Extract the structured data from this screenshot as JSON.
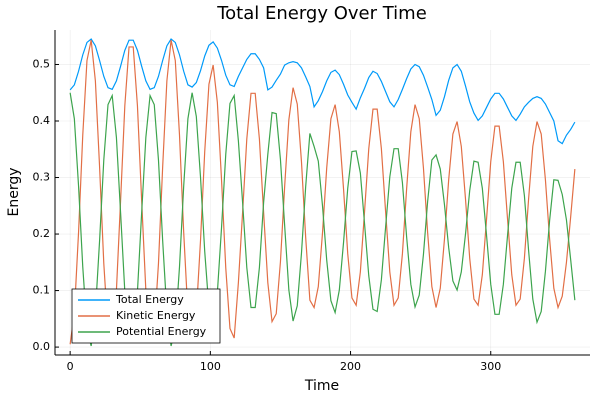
{
  "chart_data": {
    "type": "line",
    "title": "Total Energy Over Time",
    "x_label": "Time",
    "y_label": "Energy",
    "x": [
      0,
      3,
      6,
      9,
      12,
      15,
      18,
      21,
      24,
      27,
      30,
      33,
      36,
      39,
      42,
      45,
      48,
      51,
      54,
      57,
      60,
      63,
      66,
      69,
      72,
      75,
      78,
      81,
      84,
      87,
      90,
      93,
      96,
      99,
      102,
      105,
      108,
      111,
      114,
      117,
      120,
      123,
      126,
      129,
      132,
      135,
      138,
      141,
      144,
      147,
      150,
      153,
      156,
      159,
      162,
      165,
      168,
      171,
      174,
      177,
      180,
      183,
      186,
      189,
      192,
      195,
      198,
      201,
      204,
      207,
      210,
      213,
      216,
      219,
      222,
      225,
      228,
      231,
      234,
      237,
      240,
      243,
      246,
      249,
      252,
      255,
      258,
      261,
      264,
      267,
      270,
      273,
      276,
      279,
      282,
      285,
      288,
      291,
      294,
      297,
      300,
      303,
      306,
      309,
      312,
      315,
      318,
      321,
      324,
      327,
      330,
      333,
      336,
      339,
      342,
      345,
      348,
      351,
      354,
      357,
      360
    ],
    "series": [
      {
        "name": "Total Energy",
        "color": "#009af9",
        "values": [
          0.455,
          0.464,
          0.488,
          0.517,
          0.539,
          0.545,
          0.533,
          0.507,
          0.479,
          0.459,
          0.456,
          0.471,
          0.497,
          0.525,
          0.543,
          0.543,
          0.525,
          0.497,
          0.471,
          0.456,
          0.459,
          0.479,
          0.507,
          0.533,
          0.545,
          0.539,
          0.517,
          0.488,
          0.464,
          0.46,
          0.468,
          0.489,
          0.515,
          0.534,
          0.54,
          0.529,
          0.507,
          0.481,
          0.464,
          0.461,
          0.479,
          0.494,
          0.509,
          0.519,
          0.519,
          0.509,
          0.494,
          0.455,
          0.46,
          0.472,
          0.483,
          0.499,
          0.503,
          0.505,
          0.503,
          0.494,
          0.478,
          0.461,
          0.425,
          0.436,
          0.452,
          0.471,
          0.486,
          0.49,
          0.482,
          0.465,
          0.446,
          0.433,
          0.421,
          0.441,
          0.458,
          0.477,
          0.488,
          0.484,
          0.47,
          0.452,
          0.434,
          0.425,
          0.438,
          0.456,
          0.475,
          0.492,
          0.5,
          0.496,
          0.481,
          0.46,
          0.438,
          0.41,
          0.419,
          0.443,
          0.472,
          0.494,
          0.5,
          0.488,
          0.462,
          0.434,
          0.414,
          0.401,
          0.409,
          0.424,
          0.439,
          0.449,
          0.449,
          0.439,
          0.424,
          0.409,
          0.401,
          0.412,
          0.425,
          0.433,
          0.44,
          0.443,
          0.44,
          0.43,
          0.415,
          0.4,
          0.365,
          0.36,
          0.375,
          0.385,
          0.398
        ]
      },
      {
        "name": "Kinetic Energy",
        "color": "#e26f46",
        "values": [
          0.005,
          0.06,
          0.203,
          0.375,
          0.507,
          0.543,
          0.471,
          0.319,
          0.148,
          0.03,
          0.011,
          0.1,
          0.26,
          0.427,
          0.531,
          0.531,
          0.427,
          0.26,
          0.1,
          0.011,
          0.03,
          0.148,
          0.319,
          0.471,
          0.543,
          0.507,
          0.375,
          0.203,
          0.06,
          0.01,
          0.06,
          0.189,
          0.346,
          0.465,
          0.499,
          0.433,
          0.295,
          0.14,
          0.033,
          0.016,
          0.114,
          0.238,
          0.368,
          0.449,
          0.449,
          0.368,
          0.238,
          0.114,
          0.045,
          0.059,
          0.151,
          0.284,
          0.402,
          0.459,
          0.43,
          0.328,
          0.194,
          0.083,
          0.07,
          0.107,
          0.202,
          0.317,
          0.404,
          0.429,
          0.381,
          0.28,
          0.165,
          0.087,
          0.074,
          0.133,
          0.24,
          0.351,
          0.421,
          0.421,
          0.351,
          0.24,
          0.133,
          0.074,
          0.087,
          0.165,
          0.28,
          0.381,
          0.429,
          0.404,
          0.317,
          0.202,
          0.107,
          0.07,
          0.104,
          0.191,
          0.296,
          0.377,
          0.399,
          0.355,
          0.262,
          0.157,
          0.085,
          0.074,
          0.128,
          0.226,
          0.328,
          0.391,
          0.391,
          0.328,
          0.226,
          0.128,
          0.074,
          0.085,
          0.157,
          0.262,
          0.355,
          0.399,
          0.377,
          0.296,
          0.191,
          0.104,
          0.07,
          0.09,
          0.15,
          0.23,
          0.315
        ]
      },
      {
        "name": "Potential Energy",
        "color": "#3da44d",
        "values": [
          0.45,
          0.404,
          0.285,
          0.142,
          0.032,
          0.002,
          0.062,
          0.188,
          0.331,
          0.429,
          0.445,
          0.371,
          0.237,
          0.098,
          0.012,
          0.012,
          0.098,
          0.237,
          0.371,
          0.445,
          0.429,
          0.331,
          0.188,
          0.062,
          0.002,
          0.032,
          0.142,
          0.285,
          0.404,
          0.45,
          0.408,
          0.3,
          0.169,
          0.069,
          0.041,
          0.096,
          0.212,
          0.341,
          0.431,
          0.445,
          0.365,
          0.256,
          0.141,
          0.07,
          0.07,
          0.141,
          0.256,
          0.341,
          0.415,
          0.413,
          0.332,
          0.215,
          0.101,
          0.046,
          0.073,
          0.166,
          0.284,
          0.378,
          0.355,
          0.329,
          0.25,
          0.154,
          0.082,
          0.061,
          0.101,
          0.185,
          0.281,
          0.346,
          0.347,
          0.308,
          0.218,
          0.126,
          0.067,
          0.063,
          0.119,
          0.212,
          0.301,
          0.351,
          0.351,
          0.291,
          0.195,
          0.111,
          0.071,
          0.092,
          0.164,
          0.258,
          0.331,
          0.34,
          0.315,
          0.252,
          0.176,
          0.117,
          0.101,
          0.133,
          0.2,
          0.277,
          0.329,
          0.327,
          0.281,
          0.198,
          0.111,
          0.058,
          0.058,
          0.111,
          0.198,
          0.281,
          0.327,
          0.327,
          0.268,
          0.171,
          0.085,
          0.044,
          0.063,
          0.134,
          0.224,
          0.296,
          0.295,
          0.27,
          0.225,
          0.155,
          0.083
        ]
      }
    ],
    "xlim": [
      -10.8,
      370.8
    ],
    "ylim": [
      -0.014,
      0.561
    ],
    "xticks": [
      0,
      100,
      200,
      300
    ],
    "yticks": [
      {
        "value": 0,
        "label": "0.0"
      },
      0.1,
      0.2,
      0.3,
      0.4,
      0.5
    ],
    "grid": true,
    "legend": "bottom-left"
  }
}
